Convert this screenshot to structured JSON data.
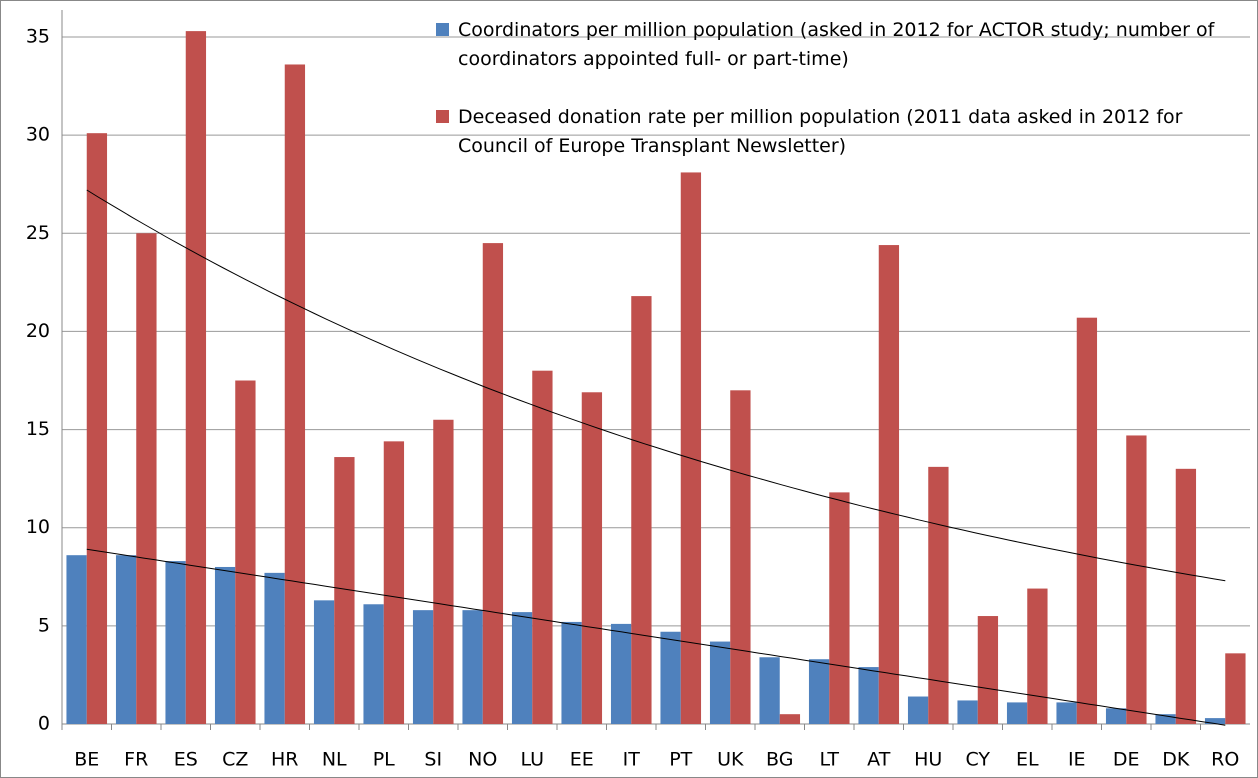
{
  "chart_data": {
    "type": "bar",
    "categories": [
      "BE",
      "FR",
      "ES",
      "CZ",
      "HR",
      "NL",
      "PL",
      "SI",
      "NO",
      "LU",
      "EE",
      "IT",
      "PT",
      "UK",
      "BG",
      "LT",
      "AT",
      "HU",
      "CY",
      "EL",
      "IE",
      "DE",
      "DK",
      "RO"
    ],
    "series": [
      {
        "name": "Coordinators per million population (asked in 2012 for ACTOR study; number of coordinators appointed full- or part-time)",
        "color": "#4f81bd",
        "trendline": "linear",
        "values": [
          8.6,
          8.6,
          8.3,
          8.0,
          7.7,
          6.3,
          6.1,
          5.8,
          5.8,
          5.7,
          5.2,
          5.1,
          4.7,
          4.2,
          3.4,
          3.3,
          2.9,
          1.4,
          1.2,
          1.1,
          1.1,
          0.8,
          0.5,
          0.3
        ]
      },
      {
        "name": "Deceased donation rate per million population (2011 data asked in 2012 for Council of Europe Transplant Newsletter)",
        "color": "#c0504d",
        "trendline": "exponential",
        "values": [
          30.1,
          25.0,
          35.3,
          17.5,
          33.6,
          13.6,
          14.4,
          15.5,
          24.5,
          18.0,
          16.9,
          21.8,
          28.1,
          17.0,
          0.5,
          11.8,
          24.4,
          13.1,
          5.5,
          6.9,
          20.7,
          14.7,
          13.0,
          3.6
        ]
      }
    ],
    "ylim": [
      0,
      35
    ],
    "yticks": [
      0,
      5,
      10,
      15,
      20,
      25,
      30,
      35
    ],
    "grid": true,
    "legend": "top-right"
  }
}
